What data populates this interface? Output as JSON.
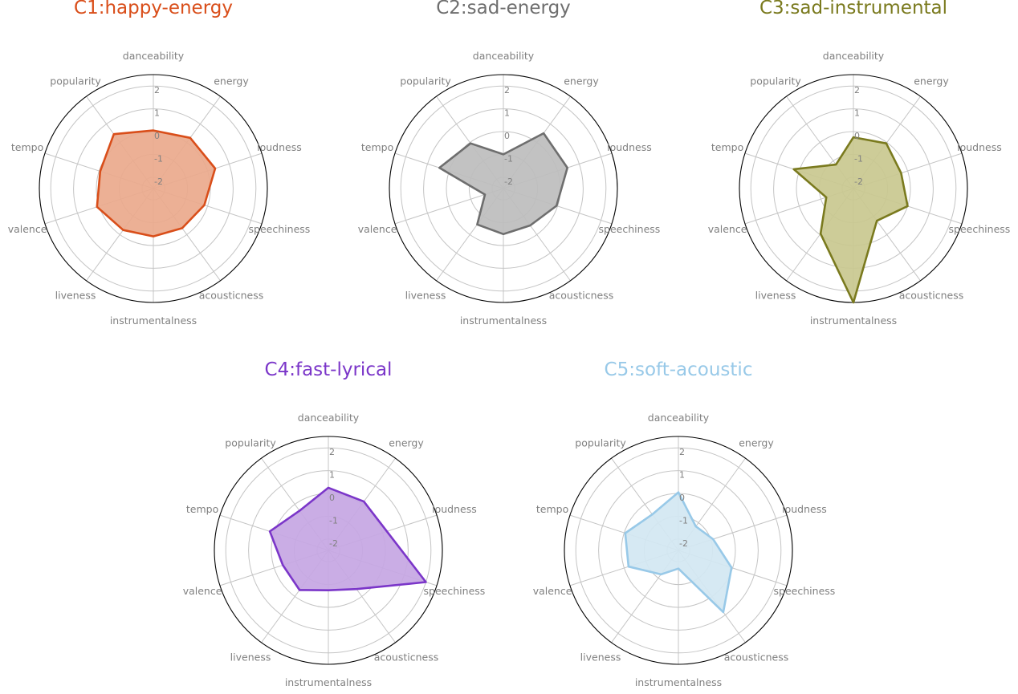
{
  "chart_data": {
    "type": "radar",
    "axes": [
      "danceability",
      "energy",
      "loudness",
      "speechiness",
      "acousticness",
      "instrumentalness",
      "liveness",
      "valence",
      "tempo",
      "popularity"
    ],
    "r_ticks": [
      "-2",
      "-1",
      "0",
      "1",
      "2"
    ],
    "r_range": [
      -2.5,
      2.5
    ],
    "grid": true,
    "charts": [
      {
        "title": "C1:happy-energy",
        "color": "#d94e1a",
        "fill": "#eaa98c",
        "values": [
          0.05,
          0.25,
          0.35,
          -0.15,
          -0.35,
          -0.4,
          -0.25,
          0.1,
          -0.05,
          0.45
        ]
      },
      {
        "title": "C2:sad-energy",
        "color": "#6e6e6e",
        "fill": "#bdbdbd",
        "values": [
          -1.0,
          0.5,
          0.45,
          -0.05,
          -0.5,
          -0.5,
          -0.55,
          -1.65,
          0.45,
          -0.05
        ]
      },
      {
        "title": "C3:sad-instrumental",
        "color": "#7a7a1e",
        "fill": "#c9c88f",
        "values": [
          -0.25,
          -0.05,
          -0.3,
          0.0,
          -0.75,
          2.5,
          -0.05,
          -1.25,
          0.25,
          -1.2
        ]
      },
      {
        "title": "C4:fast-lyrical",
        "color": "#7b36c9",
        "fill": "#c6a6e3",
        "values": [
          0.25,
          0.15,
          0.2,
          2.0,
          -0.4,
          -0.75,
          -0.35,
          -0.4,
          0.2,
          -0.35
        ]
      },
      {
        "title": "C5:soft-acoustic",
        "color": "#98c9e8",
        "fill": "#d2e7f2",
        "values": [
          0.05,
          -1.2,
          -0.9,
          -0.05,
          0.85,
          -1.7,
          -1.2,
          -0.2,
          -0.05,
          -0.55
        ]
      }
    ]
  }
}
